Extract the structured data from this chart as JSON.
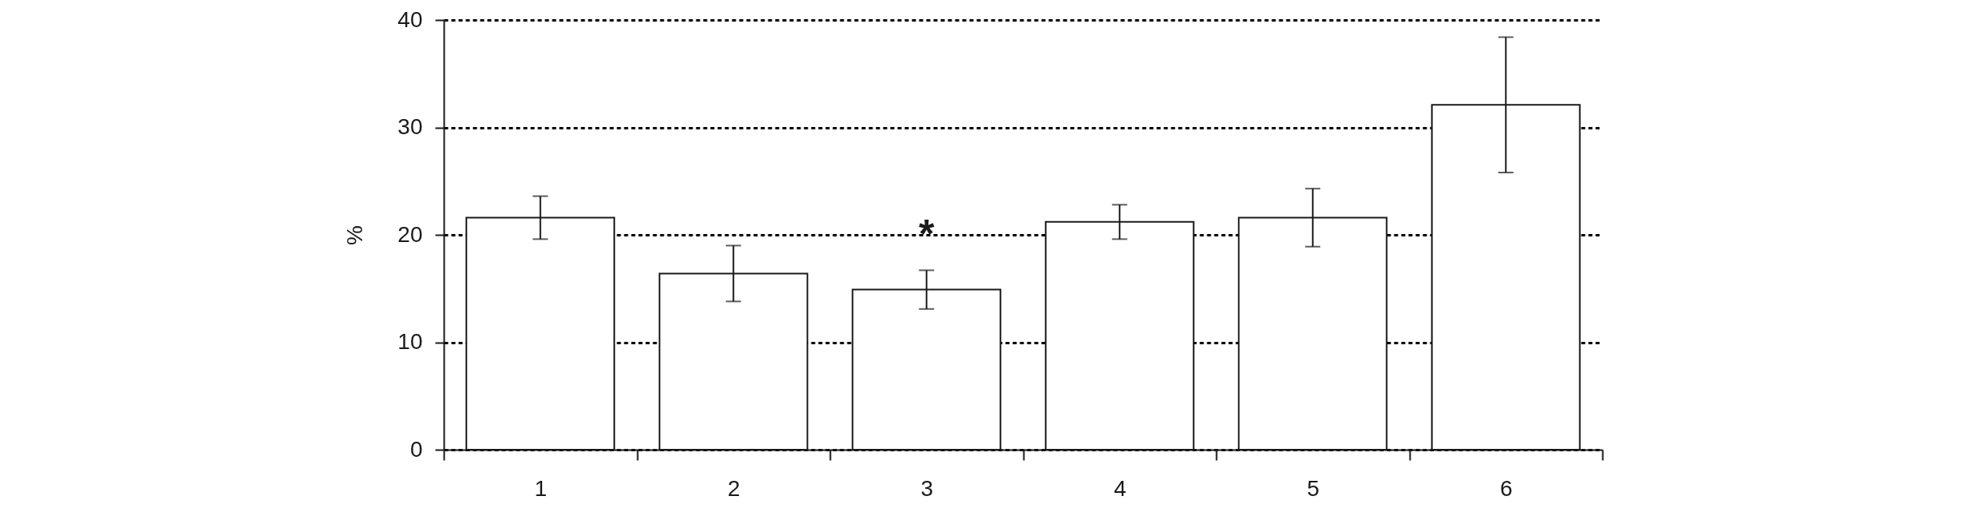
{
  "chart_data": {
    "type": "bar",
    "ylabel": "%",
    "categories": [
      "1",
      "2",
      "3",
      "4",
      "5",
      "6"
    ],
    "values": [
      21.6,
      16.4,
      14.9,
      21.2,
      21.6,
      32.1
    ],
    "errors": [
      2.0,
      2.6,
      1.8,
      1.6,
      2.7,
      6.3
    ],
    "color": "#ffffff",
    "ylim": [
      0,
      40
    ],
    "yticks": [
      0,
      10,
      20,
      30,
      40
    ],
    "grid": "y",
    "annotations": [
      {
        "text": "*",
        "x": "3",
        "y": 14.9
      }
    ]
  }
}
